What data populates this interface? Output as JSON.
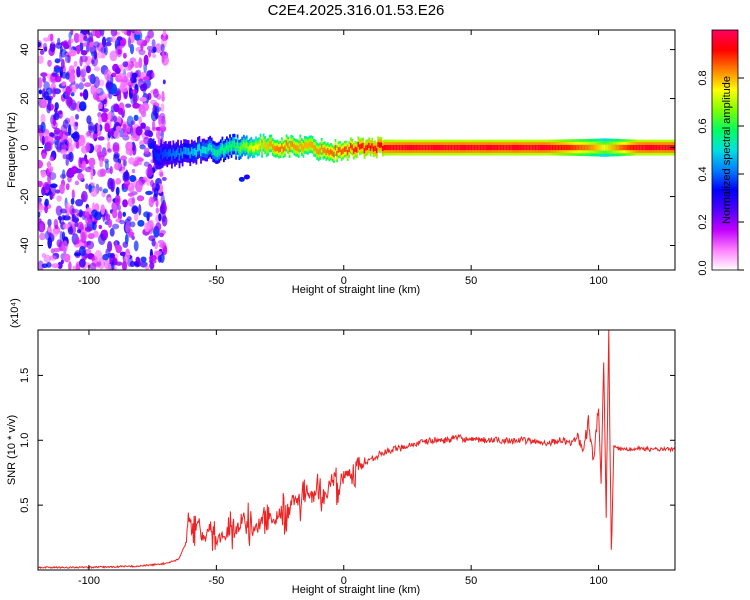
{
  "title": "C2E4.2025.316.01.53.E26",
  "chart_data": [
    {
      "type": "heatmap",
      "title": "C2E4.2025.316.01.53.E26",
      "xlabel": "Height of straight line (km)",
      "ylabel": "Frequency (Hz)",
      "xlim": [
        -120,
        130
      ],
      "ylim": [
        -50,
        48
      ],
      "xticks": [
        -100,
        -50,
        0,
        50,
        100
      ],
      "yticks": [
        -40,
        -20,
        0,
        20,
        40
      ],
      "colorbar": {
        "label": "Normalized spectral amplitude",
        "range": [
          0,
          1
        ],
        "ticks": [
          0.0,
          0.2,
          0.4,
          0.6,
          0.8
        ],
        "colors": [
          "#ffffff",
          "#ff80ff",
          "#c000ff",
          "#5000ff",
          "#0000ff",
          "#0080ff",
          "#00e0e0",
          "#00ff60",
          "#80ff00",
          "#ffff00",
          "#ff8000",
          "#ff0000",
          "#ff0060"
        ]
      },
      "noise_region_x": [
        -120,
        -70
      ],
      "dominant_frequency_hz": 0,
      "ridge": [
        {
          "x": -75,
          "y": -2.5,
          "amp": 0.35
        },
        {
          "x": -68,
          "y": -3,
          "amp": 0.4
        },
        {
          "x": -62,
          "y": -2,
          "amp": 0.45
        },
        {
          "x": -57,
          "y": -1,
          "amp": 0.5
        },
        {
          "x": -50,
          "y": -1,
          "amp": 0.55
        },
        {
          "x": -43,
          "y": 0.5,
          "amp": 0.6
        },
        {
          "x": -35,
          "y": 0.5,
          "amp": 0.75
        },
        {
          "x": -25,
          "y": 0.5,
          "amp": 0.85
        },
        {
          "x": -15,
          "y": 0.5,
          "amp": 0.8
        },
        {
          "x": -5,
          "y": -1.5,
          "amp": 0.85
        },
        {
          "x": 5,
          "y": 0,
          "amp": 0.9
        },
        {
          "x": 20,
          "y": 0,
          "amp": 0.95
        },
        {
          "x": 50,
          "y": 0,
          "amp": 0.95
        },
        {
          "x": 80,
          "y": 0,
          "amp": 0.95
        },
        {
          "x": 95,
          "y": 0,
          "amp": 0.85
        },
        {
          "x": 102,
          "y": 0,
          "amp": 0.75
        },
        {
          "x": 115,
          "y": 0,
          "amp": 0.95
        },
        {
          "x": 130,
          "y": 0,
          "amp": 0.95
        }
      ],
      "outliers": [
        {
          "x": -40,
          "y": -13,
          "amp": 0.35
        },
        {
          "x": -38,
          "y": -12,
          "amp": 0.3
        }
      ]
    },
    {
      "type": "line",
      "xlabel": "Height of straight line (km)",
      "ylabel": "SNR (10 * v/v)",
      "scale_label": "(x10⁴)",
      "xlim": [
        -120,
        130
      ],
      "ylim": [
        0,
        1.85
      ],
      "xticks": [
        -100,
        -50,
        0,
        50,
        100
      ],
      "yticks": [
        0.5,
        1.0,
        1.5
      ],
      "color": "#ee2222",
      "series": [
        {
          "name": "SNR",
          "x": [
            -120,
            -100,
            -80,
            -70,
            -65,
            -62,
            -61,
            -59,
            -57,
            -55,
            -53,
            -50,
            -47,
            -45,
            -42,
            -39,
            -37,
            -35,
            -32,
            -30,
            -28,
            -25,
            -22,
            -20,
            -17,
            -15,
            -12,
            -10,
            -7,
            -5,
            -2,
            0,
            3,
            6,
            10,
            15,
            20,
            25,
            30,
            35,
            40,
            45,
            50,
            60,
            70,
            80,
            85,
            90,
            92,
            94,
            96,
            98,
            100,
            101,
            102,
            103,
            104,
            105,
            106,
            108,
            110,
            115,
            120,
            125,
            130
          ],
          "y": [
            0.02,
            0.02,
            0.03,
            0.05,
            0.08,
            0.2,
            0.42,
            0.3,
            0.34,
            0.22,
            0.3,
            0.26,
            0.25,
            0.32,
            0.3,
            0.45,
            0.33,
            0.3,
            0.38,
            0.44,
            0.35,
            0.46,
            0.42,
            0.55,
            0.5,
            0.65,
            0.55,
            0.62,
            0.55,
            0.7,
            0.65,
            0.72,
            0.75,
            0.8,
            0.85,
            0.9,
            0.93,
            0.96,
            0.98,
            1.0,
            1.0,
            1.02,
            1.0,
            1.0,
            1.0,
            0.98,
            1.0,
            0.98,
            1.05,
            0.9,
            1.15,
            0.85,
            1.25,
            0.7,
            1.55,
            0.45,
            1.85,
            0.1,
            0.95,
            0.93,
            0.93,
            0.94,
            0.93,
            0.93,
            0.93
          ]
        }
      ]
    }
  ]
}
